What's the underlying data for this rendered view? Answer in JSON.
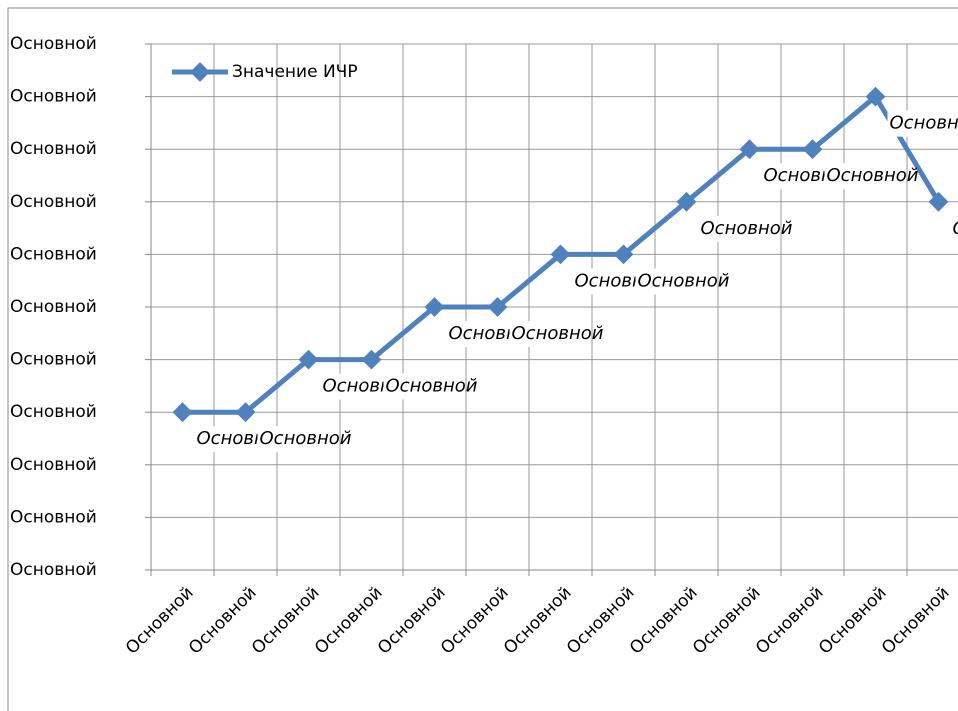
{
  "chart_data": {
    "type": "line",
    "categories": [
      "Основной",
      "Основной",
      "Основной",
      "Основной",
      "Основной",
      "Основной",
      "Основной",
      "Основной",
      "Основной",
      "Основной",
      "Основной",
      "Основной",
      "Основной"
    ],
    "series": [
      {
        "name": "Значение ИЧР",
        "color": "#4f81bd",
        "values": [
          3,
          3,
          4,
          4,
          5,
          5,
          6,
          6,
          7,
          8,
          8,
          9,
          7
        ],
        "value_labels": [
          "Основной",
          "Основной",
          "Основной",
          "Основной",
          "Основной",
          "Основной",
          "Основной",
          "Основной",
          "Основной",
          "Основной",
          "Основной",
          "Основной",
          "Основной"
        ]
      }
    ],
    "ylim": [
      0,
      10
    ],
    "yticks": [
      {
        "value": 0,
        "label": "Основной"
      },
      {
        "value": 1,
        "label": "Основной"
      },
      {
        "value": 2,
        "label": "Основной"
      },
      {
        "value": 3,
        "label": "Основной"
      },
      {
        "value": 4,
        "label": "Основной"
      },
      {
        "value": 5,
        "label": "Основной"
      },
      {
        "value": 6,
        "label": "Основной"
      },
      {
        "value": 7,
        "label": "Основной"
      },
      {
        "value": 8,
        "label": "Основной"
      },
      {
        "value": 9,
        "label": "Основной"
      },
      {
        "value": 10,
        "label": "Основной"
      }
    ],
    "grid": true,
    "legend": "top-left"
  }
}
